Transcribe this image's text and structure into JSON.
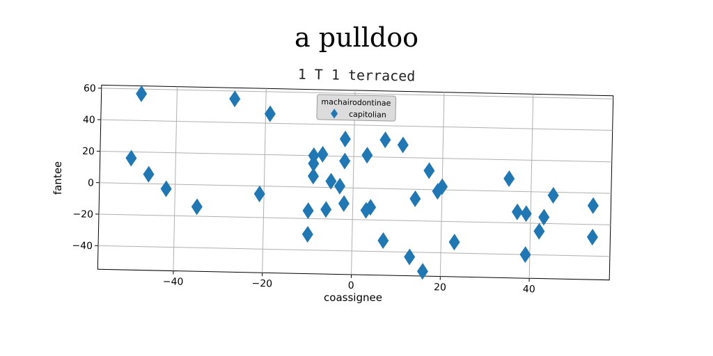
{
  "chart_data": {
    "type": "scatter",
    "title": "a pulldoo",
    "subtitle": "1 T 1 terraced",
    "xlabel": "coassignee",
    "ylabel": "fantee",
    "xlim": [
      -57,
      58
    ],
    "ylim": [
      -55,
      62
    ],
    "xticks": [
      -40,
      -20,
      0,
      20,
      40
    ],
    "yticks": [
      60,
      40,
      20,
      0,
      -20,
      -40
    ],
    "grid": true,
    "legend": {
      "title": "machairodontinae",
      "placement": "top-center"
    },
    "series": [
      {
        "name": "capitolian",
        "marker": "diamond",
        "color": "#1f77b4",
        "points": [
          [
            -48,
            57
          ],
          [
            -27,
            55
          ],
          [
            -19,
            46
          ],
          [
            -50,
            16
          ],
          [
            -46,
            6
          ],
          [
            -42,
            -3
          ],
          [
            -35,
            -14
          ],
          [
            -21,
            -5
          ],
          [
            -9,
            20
          ],
          [
            -9,
            15
          ],
          [
            -9,
            7
          ],
          [
            -7,
            21
          ],
          [
            -5,
            4
          ],
          [
            -3,
            1
          ],
          [
            -2,
            31
          ],
          [
            -2,
            17
          ],
          [
            -2,
            -10
          ],
          [
            -10,
            -15
          ],
          [
            -10,
            -30
          ],
          [
            -6,
            -14
          ],
          [
            3,
            21
          ],
          [
            3,
            -14
          ],
          [
            4,
            -12
          ],
          [
            7,
            31
          ],
          [
            7,
            -33
          ],
          [
            11,
            28
          ],
          [
            13,
            -43
          ],
          [
            14,
            -6
          ],
          [
            16,
            -52
          ],
          [
            17,
            12
          ],
          [
            19,
            -1
          ],
          [
            20,
            2
          ],
          [
            23,
            -33
          ],
          [
            35,
            8
          ],
          [
            37,
            -13
          ],
          [
            39,
            -14
          ],
          [
            39,
            -40
          ],
          [
            42,
            -25
          ],
          [
            43,
            -16
          ],
          [
            45,
            -2
          ],
          [
            54,
            -8
          ],
          [
            54,
            -28
          ]
        ]
      }
    ]
  }
}
